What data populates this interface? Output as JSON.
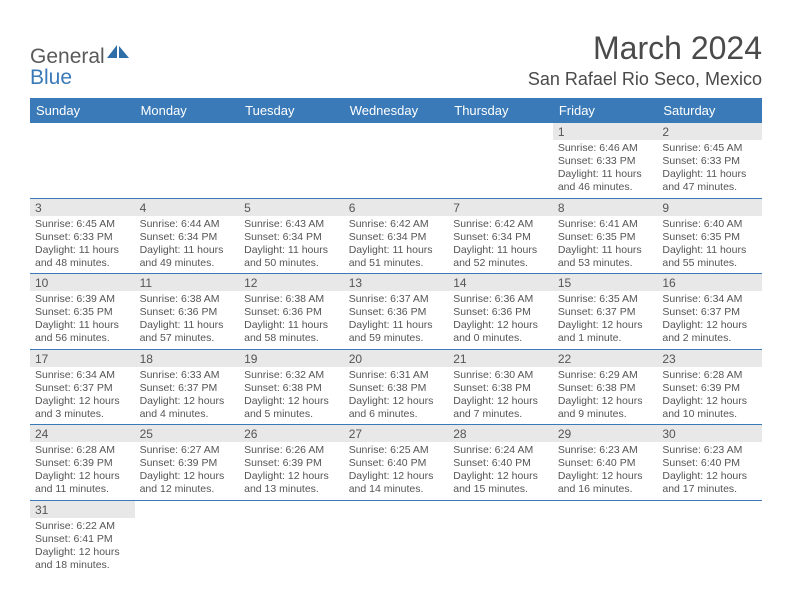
{
  "brand": {
    "part1": "General",
    "part2": "Blue"
  },
  "title": "March 2024",
  "location": "San Rafael Rio Seco, Mexico",
  "colors": {
    "header_bg": "#3a7ab8",
    "header_text": "#ffffff",
    "daynum_bg": "#e8e8e8",
    "border": "#3a7ab8",
    "body_text": "#555555",
    "page_bg": "#ffffff"
  },
  "fonts": {
    "title_size": 32,
    "location_size": 18,
    "th_size": 13,
    "cell_size": 10.5
  },
  "weekdays": [
    "Sunday",
    "Monday",
    "Tuesday",
    "Wednesday",
    "Thursday",
    "Friday",
    "Saturday"
  ],
  "weeks": [
    [
      null,
      null,
      null,
      null,
      null,
      {
        "n": "1",
        "sr": "Sunrise: 6:46 AM",
        "ss": "Sunset: 6:33 PM",
        "dl": "Daylight: 11 hours and 46 minutes."
      },
      {
        "n": "2",
        "sr": "Sunrise: 6:45 AM",
        "ss": "Sunset: 6:33 PM",
        "dl": "Daylight: 11 hours and 47 minutes."
      }
    ],
    [
      {
        "n": "3",
        "sr": "Sunrise: 6:45 AM",
        "ss": "Sunset: 6:33 PM",
        "dl": "Daylight: 11 hours and 48 minutes."
      },
      {
        "n": "4",
        "sr": "Sunrise: 6:44 AM",
        "ss": "Sunset: 6:34 PM",
        "dl": "Daylight: 11 hours and 49 minutes."
      },
      {
        "n": "5",
        "sr": "Sunrise: 6:43 AM",
        "ss": "Sunset: 6:34 PM",
        "dl": "Daylight: 11 hours and 50 minutes."
      },
      {
        "n": "6",
        "sr": "Sunrise: 6:42 AM",
        "ss": "Sunset: 6:34 PM",
        "dl": "Daylight: 11 hours and 51 minutes."
      },
      {
        "n": "7",
        "sr": "Sunrise: 6:42 AM",
        "ss": "Sunset: 6:34 PM",
        "dl": "Daylight: 11 hours and 52 minutes."
      },
      {
        "n": "8",
        "sr": "Sunrise: 6:41 AM",
        "ss": "Sunset: 6:35 PM",
        "dl": "Daylight: 11 hours and 53 minutes."
      },
      {
        "n": "9",
        "sr": "Sunrise: 6:40 AM",
        "ss": "Sunset: 6:35 PM",
        "dl": "Daylight: 11 hours and 55 minutes."
      }
    ],
    [
      {
        "n": "10",
        "sr": "Sunrise: 6:39 AM",
        "ss": "Sunset: 6:35 PM",
        "dl": "Daylight: 11 hours and 56 minutes."
      },
      {
        "n": "11",
        "sr": "Sunrise: 6:38 AM",
        "ss": "Sunset: 6:36 PM",
        "dl": "Daylight: 11 hours and 57 minutes."
      },
      {
        "n": "12",
        "sr": "Sunrise: 6:38 AM",
        "ss": "Sunset: 6:36 PM",
        "dl": "Daylight: 11 hours and 58 minutes."
      },
      {
        "n": "13",
        "sr": "Sunrise: 6:37 AM",
        "ss": "Sunset: 6:36 PM",
        "dl": "Daylight: 11 hours and 59 minutes."
      },
      {
        "n": "14",
        "sr": "Sunrise: 6:36 AM",
        "ss": "Sunset: 6:36 PM",
        "dl": "Daylight: 12 hours and 0 minutes."
      },
      {
        "n": "15",
        "sr": "Sunrise: 6:35 AM",
        "ss": "Sunset: 6:37 PM",
        "dl": "Daylight: 12 hours and 1 minute."
      },
      {
        "n": "16",
        "sr": "Sunrise: 6:34 AM",
        "ss": "Sunset: 6:37 PM",
        "dl": "Daylight: 12 hours and 2 minutes."
      }
    ],
    [
      {
        "n": "17",
        "sr": "Sunrise: 6:34 AM",
        "ss": "Sunset: 6:37 PM",
        "dl": "Daylight: 12 hours and 3 minutes."
      },
      {
        "n": "18",
        "sr": "Sunrise: 6:33 AM",
        "ss": "Sunset: 6:37 PM",
        "dl": "Daylight: 12 hours and 4 minutes."
      },
      {
        "n": "19",
        "sr": "Sunrise: 6:32 AM",
        "ss": "Sunset: 6:38 PM",
        "dl": "Daylight: 12 hours and 5 minutes."
      },
      {
        "n": "20",
        "sr": "Sunrise: 6:31 AM",
        "ss": "Sunset: 6:38 PM",
        "dl": "Daylight: 12 hours and 6 minutes."
      },
      {
        "n": "21",
        "sr": "Sunrise: 6:30 AM",
        "ss": "Sunset: 6:38 PM",
        "dl": "Daylight: 12 hours and 7 minutes."
      },
      {
        "n": "22",
        "sr": "Sunrise: 6:29 AM",
        "ss": "Sunset: 6:38 PM",
        "dl": "Daylight: 12 hours and 9 minutes."
      },
      {
        "n": "23",
        "sr": "Sunrise: 6:28 AM",
        "ss": "Sunset: 6:39 PM",
        "dl": "Daylight: 12 hours and 10 minutes."
      }
    ],
    [
      {
        "n": "24",
        "sr": "Sunrise: 6:28 AM",
        "ss": "Sunset: 6:39 PM",
        "dl": "Daylight: 12 hours and 11 minutes."
      },
      {
        "n": "25",
        "sr": "Sunrise: 6:27 AM",
        "ss": "Sunset: 6:39 PM",
        "dl": "Daylight: 12 hours and 12 minutes."
      },
      {
        "n": "26",
        "sr": "Sunrise: 6:26 AM",
        "ss": "Sunset: 6:39 PM",
        "dl": "Daylight: 12 hours and 13 minutes."
      },
      {
        "n": "27",
        "sr": "Sunrise: 6:25 AM",
        "ss": "Sunset: 6:40 PM",
        "dl": "Daylight: 12 hours and 14 minutes."
      },
      {
        "n": "28",
        "sr": "Sunrise: 6:24 AM",
        "ss": "Sunset: 6:40 PM",
        "dl": "Daylight: 12 hours and 15 minutes."
      },
      {
        "n": "29",
        "sr": "Sunrise: 6:23 AM",
        "ss": "Sunset: 6:40 PM",
        "dl": "Daylight: 12 hours and 16 minutes."
      },
      {
        "n": "30",
        "sr": "Sunrise: 6:23 AM",
        "ss": "Sunset: 6:40 PM",
        "dl": "Daylight: 12 hours and 17 minutes."
      }
    ],
    [
      {
        "n": "31",
        "sr": "Sunrise: 6:22 AM",
        "ss": "Sunset: 6:41 PM",
        "dl": "Daylight: 12 hours and 18 minutes."
      },
      null,
      null,
      null,
      null,
      null,
      null
    ]
  ]
}
